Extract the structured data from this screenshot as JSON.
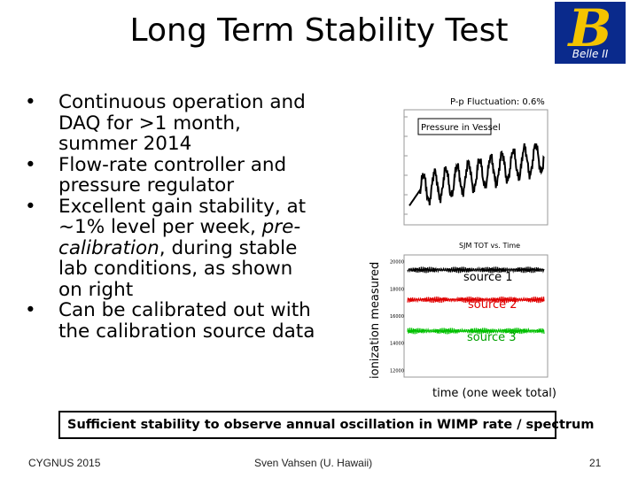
{
  "slide": {
    "title": "Long Term Stability Test",
    "logo": {
      "letter": "B",
      "text": "Belle II"
    },
    "bullets": [
      [
        {
          "t": "Continuous operation and DAQ for >1 month, summer 2014",
          "i": false
        }
      ],
      [
        {
          "t": "Flow-rate controller and pressure regulator",
          "i": false
        }
      ],
      [
        {
          "t": "Excellent gain stability, at ~1% level per week, ",
          "i": false
        },
        {
          "t": "pre-calibration",
          "i": true
        },
        {
          "t": ", during stable lab conditions, as shown on right",
          "i": false
        }
      ],
      [
        {
          "t": "Can be calibrated out with the calibration source data",
          "i": false
        }
      ]
    ],
    "y_axis_label": "ionization measured",
    "x_axis_label": "time (one week total)",
    "callout": "Sufficient stability to observe annual oscillation in WIMP rate / spectrum",
    "footer": {
      "left": "CYGNUS 2015",
      "center": "Sven Vahsen (U. Hawaii)",
      "right": "21"
    }
  },
  "chart_data": [
    {
      "type": "line",
      "title": "P-p Fluctuation: 0.6%",
      "legend": "Pressure in Vessel",
      "periods": 12,
      "series": [
        {
          "name": "Pressure in Vessel",
          "color": "#000000"
        }
      ]
    },
    {
      "type": "scatter",
      "title": "SJM TOT vs. Time",
      "ylim": [
        11500,
        20500
      ],
      "yticks": [
        "20000",
        "18000",
        "16000",
        "14000",
        "12000"
      ],
      "series": [
        {
          "name": "source 1",
          "level": 19400,
          "color": "#000000"
        },
        {
          "name": "source 2",
          "level": 17200,
          "color": "#e00000"
        },
        {
          "name": "source 3",
          "level": 14900,
          "color": "#00c000"
        }
      ]
    }
  ]
}
